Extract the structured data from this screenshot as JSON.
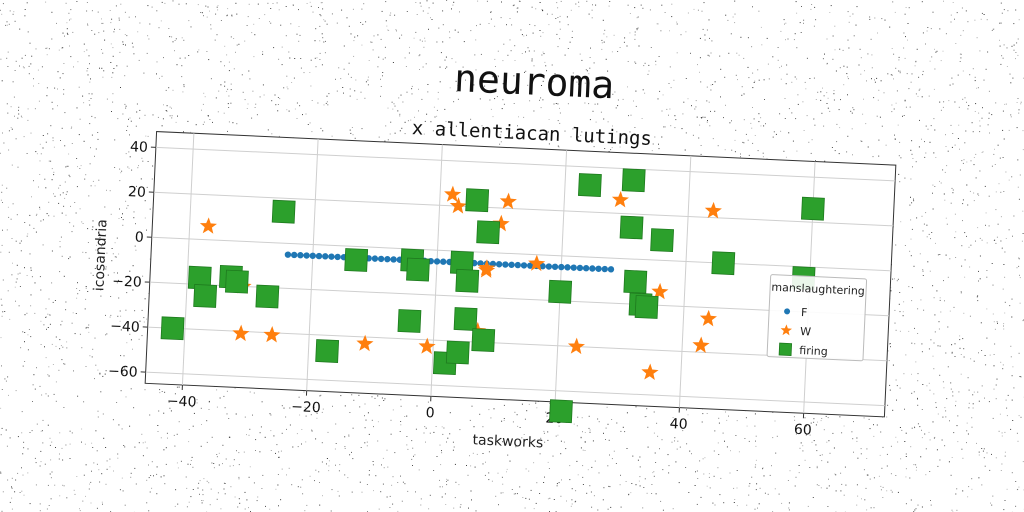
{
  "chart_data": {
    "type": "scatter",
    "title": "neuroma",
    "subtitle": "x allentiacan lutings",
    "xlabel": "taskworks",
    "ylabel": "icosandria",
    "xlim": [
      -46,
      73
    ],
    "ylim": [
      -65,
      47
    ],
    "xticks": [
      -40,
      -20,
      0,
      20,
      40,
      60
    ],
    "yticks": [
      -60,
      -40,
      -20,
      0,
      20,
      40
    ],
    "grid": true,
    "legend": {
      "title": "manslaughtering",
      "placement": "right"
    },
    "colors": {
      "F": "#1f77b4",
      "W": "#ff7f0e",
      "firing": "#2ca02c"
    },
    "series": [
      {
        "name": "F",
        "marker": "circle",
        "x": [
          -24,
          -23,
          -22,
          -21,
          -20,
          -19,
          -18,
          -17,
          -16,
          -15,
          -14,
          -13,
          -12,
          -11,
          -10,
          -9,
          -8,
          -7,
          -6,
          -5,
          -4,
          -3,
          -2,
          -1,
          0,
          1,
          2,
          3,
          4,
          5,
          6,
          7,
          8,
          9,
          10,
          11,
          12,
          13,
          14,
          15,
          16,
          17,
          18,
          19,
          20,
          21,
          22,
          23,
          24,
          25,
          26,
          27,
          28
        ],
        "y": [
          -5,
          -5,
          -5,
          -5,
          -5,
          -5,
          -5,
          -5,
          -5,
          -5,
          -5,
          -5,
          -5,
          -5,
          -5,
          -5,
          -5,
          -5,
          -5,
          -5,
          -5,
          -5,
          -5,
          -5,
          -5,
          -5,
          -5,
          -5,
          -5,
          -5,
          -5,
          -5,
          -5,
          -5,
          -5,
          -5,
          -5,
          -5,
          -5,
          -5,
          -5,
          -5,
          -5,
          -5,
          -5,
          -5,
          -5,
          -5,
          -5,
          -5,
          -5,
          -5,
          -5
        ]
      },
      {
        "name": "W",
        "marker": "star",
        "x": [
          -37,
          -31,
          -31,
          -26,
          -11,
          -1,
          2,
          3,
          7,
          8,
          8,
          10,
          11,
          16,
          23,
          29,
          35,
          36,
          43,
          44,
          44
        ],
        "y": [
          6,
          -20,
          -41,
          -41,
          -43,
          -43,
          25,
          20,
          -35,
          -7,
          -8,
          13,
          23,
          -4,
          -40,
          26,
          -50,
          -14,
          -37,
          -25,
          23
        ]
      },
      {
        "name": "firing",
        "marker": "square",
        "x": [
          -42,
          -38,
          -37,
          -33,
          -32,
          -27,
          -25,
          -17,
          -13,
          -4,
          -4,
          -3,
          2,
          4,
          4,
          5,
          5,
          6,
          8,
          8,
          20,
          21,
          24,
          31,
          31,
          32,
          33,
          34,
          36,
          46,
          59,
          60
        ],
        "y": [
          -40,
          -17,
          -25,
          -16,
          -18,
          -24,
          14,
          -47,
          -6,
          -32,
          -5,
          -9,
          -50,
          -45,
          -5,
          -13,
          -30,
          23,
          -39,
          9,
          -16,
          -69,
          32,
          35,
          14,
          -10,
          -20,
          -21,
          9,
          0,
          -5,
          26
        ]
      }
    ]
  }
}
